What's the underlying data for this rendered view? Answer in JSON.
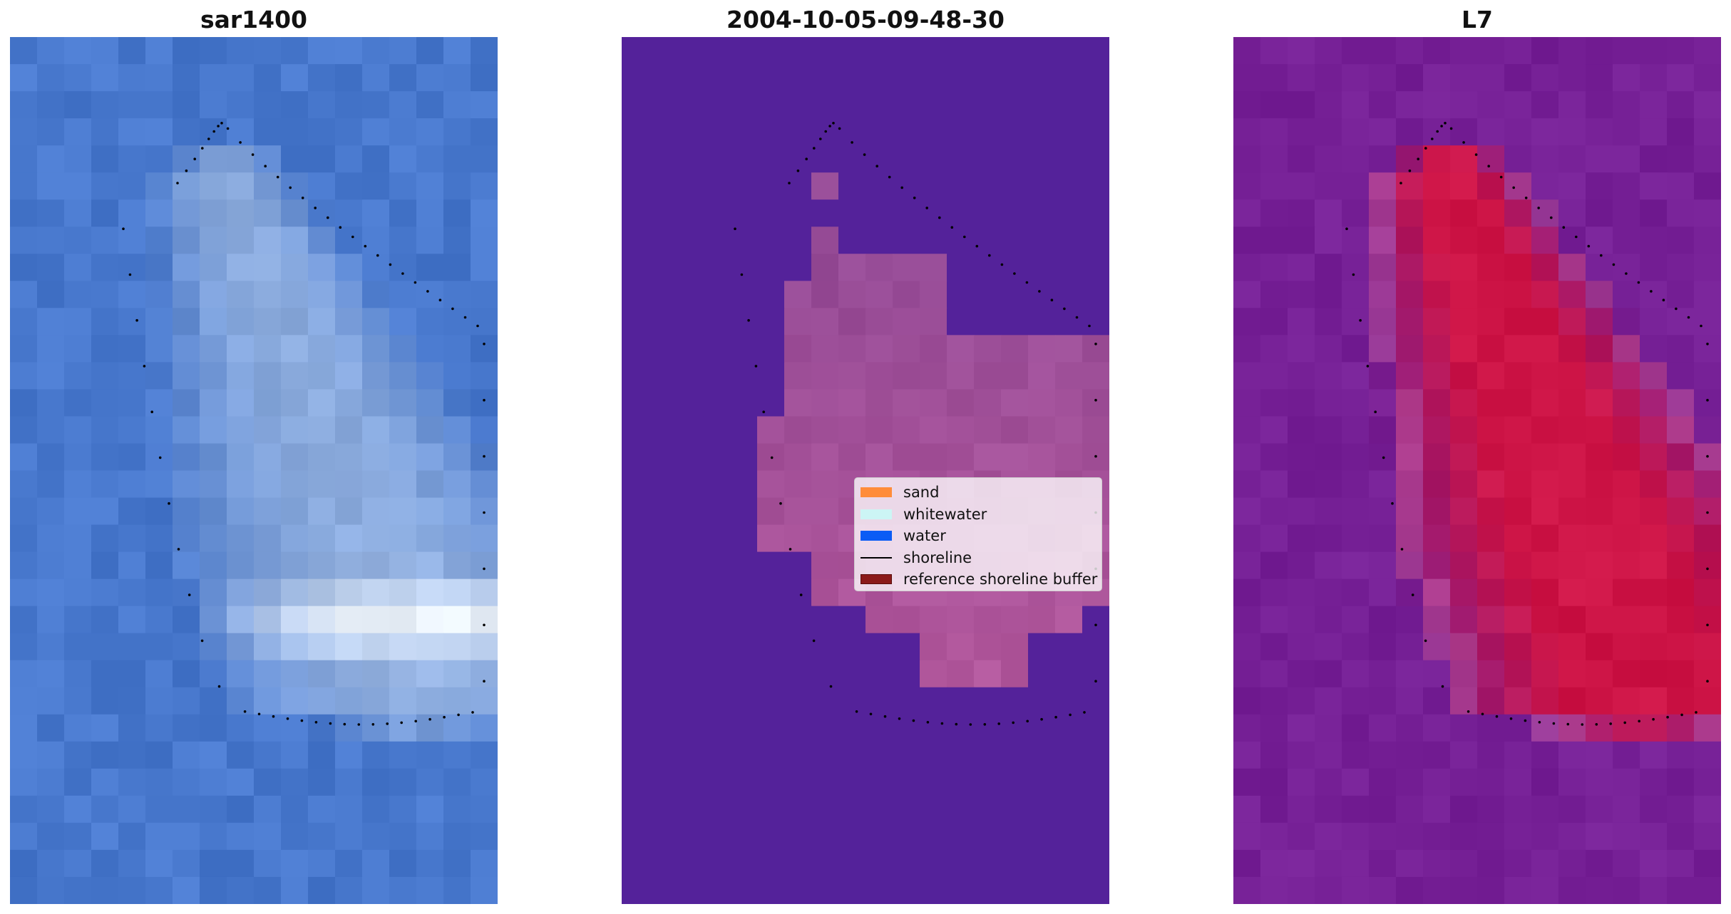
{
  "panels": [
    {
      "title": "sar1400",
      "kind": "rgb-image"
    },
    {
      "title": "2004-10-05-09-48-30",
      "kind": "classified-image"
    },
    {
      "title": "L7",
      "kind": "index-image"
    }
  ],
  "legend": {
    "items": [
      {
        "label": "sand",
        "color": "#ff8c3a",
        "style": "patch"
      },
      {
        "label": "whitewater",
        "color": "#ccf5f5",
        "style": "patch"
      },
      {
        "label": "water",
        "color": "#0b5cf5",
        "style": "patch"
      },
      {
        "label": "shoreline",
        "color": "#000000",
        "style": "line"
      },
      {
        "label": "reference shoreline buffer",
        "color": "#8b1a1a",
        "style": "patch-edged"
      }
    ]
  },
  "colors": {
    "rgb_base": "#4a7bd0",
    "classified_background": "#54229a",
    "buffer_fill": "#9a4a8c",
    "index_background": "#7a1f9c",
    "index_high": "#c8103c",
    "shoreline_dots": "#000000"
  },
  "icons": {
    "legend_line": "black-line-icon"
  }
}
